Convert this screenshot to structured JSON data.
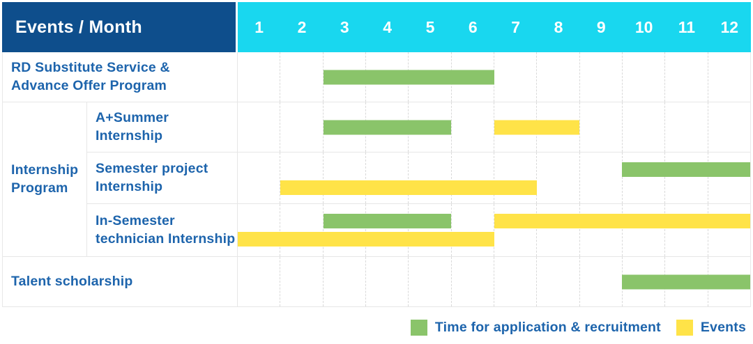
{
  "header": {
    "title": "Events / Month"
  },
  "colors": {
    "header_navy": "#0E4E8C",
    "month_band_cyan": "#19D7EF",
    "label_blue": "#1D64AC",
    "application_green": "#8AC46A",
    "events_yellow": "#FFE348",
    "grid_line": "#e6e6e6"
  },
  "chart_data": {
    "type": "bar",
    "subtype": "gantt-timeline",
    "title": "Events / Month",
    "x_axis": {
      "label": "Month",
      "ticks": [
        "1",
        "2",
        "3",
        "4",
        "5",
        "6",
        "7",
        "8",
        "9",
        "10",
        "11",
        "12"
      ],
      "range": [
        1,
        12
      ]
    },
    "grid": true,
    "legend_position": "bottom-right",
    "series_colors": {
      "Time for application & recruitment": "#8AC46A",
      "Events": "#FFE348"
    },
    "legend": [
      {
        "label": "Time for application & recruitment",
        "color": "#8AC46A"
      },
      {
        "label": "Events",
        "color": "#FFE348"
      }
    ],
    "group_label": "Internship Program",
    "rows": [
      {
        "group": "",
        "label": "RD Substitute Service &\nAdvance Offer Program",
        "bars": [
          {
            "series": "Time for application & recruitment",
            "start_month": 3,
            "end_month": 6,
            "line": "center"
          }
        ]
      },
      {
        "group": "Internship Program",
        "label": "A+Summer\nInternship",
        "bars": [
          {
            "series": "Time for application & recruitment",
            "start_month": 3,
            "end_month": 5,
            "line": "center"
          },
          {
            "series": "Events",
            "start_month": 7,
            "end_month": 8,
            "line": "center"
          }
        ]
      },
      {
        "group": "Internship Program",
        "label": "Semester project\nInternship",
        "bars": [
          {
            "series": "Time for application & recruitment",
            "start_month": 10,
            "end_month": 12,
            "line": "top"
          },
          {
            "series": "Events",
            "start_month": 2,
            "end_month": 7,
            "line": "bottom"
          }
        ]
      },
      {
        "group": "Internship Program",
        "label": "In-Semester\ntechnician Internship",
        "bars": [
          {
            "series": "Time for application & recruitment",
            "start_month": 3,
            "end_month": 5,
            "line": "top"
          },
          {
            "series": "Events",
            "start_month": 7,
            "end_month": 12,
            "line": "top"
          },
          {
            "series": "Events",
            "start_month": 1,
            "end_month": 6,
            "line": "bottom"
          }
        ]
      },
      {
        "group": "",
        "label": "Talent scholarship",
        "bars": [
          {
            "series": "Time for application & recruitment",
            "start_month": 10,
            "end_month": 12,
            "line": "center"
          }
        ]
      }
    ]
  }
}
